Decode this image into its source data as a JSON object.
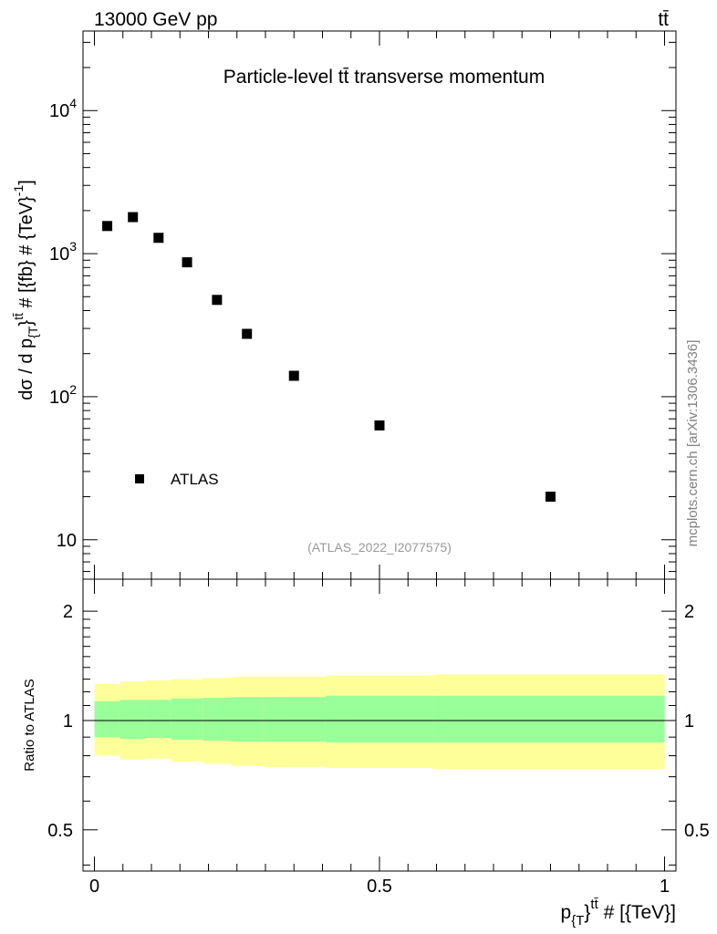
{
  "header": {
    "left": "13000 GeV pp",
    "right": "tt̄"
  },
  "side_label": "mcplots.cern.ch [arXiv:1306.3436]",
  "chart_data": [
    {
      "type": "scatter",
      "title": "Particle-level tt̄ transverse momentum",
      "watermark": "(ATLAS_2022_I2077575)",
      "ylabel": {
        "main": "dσ / d p",
        "sub": "{T",
        "after_sub": "}",
        "sup": "tt̄",
        "tail": " # [{fb} # {TeV}",
        "tail_sup": "-1",
        "end": "]"
      },
      "yscale": "log",
      "xlim": [
        -0.02,
        1.02
      ],
      "ylim": [
        5.3,
        36000
      ],
      "y_ticks": [
        {
          "value": 10,
          "label": "10"
        },
        {
          "value": 100,
          "label": "10",
          "exp": "2"
        },
        {
          "value": 1000,
          "label": "10",
          "exp": "3"
        },
        {
          "value": 10000,
          "label": "10",
          "exp": "4"
        }
      ],
      "legend": {
        "position": "bottom-left",
        "label": "ATLAS"
      },
      "series": [
        {
          "name": "ATLAS",
          "marker": "square",
          "color": "#000000",
          "x": [
            0.0225,
            0.0675,
            0.1125,
            0.1625,
            0.215,
            0.2675,
            0.35,
            0.5,
            0.8
          ],
          "y": [
            1560,
            1800,
            1290,
            870,
            475,
            275,
            140,
            63,
            20
          ]
        }
      ]
    },
    {
      "type": "area",
      "ylabel": "Ratio to ATLAS",
      "xlabel": {
        "main": "p",
        "sub": "{T",
        "after_sub": "}",
        "sup": "tt̄",
        "tail": " # [{TeV}]"
      },
      "yscale": "log",
      "xlim": [
        -0.02,
        1.02
      ],
      "ylim": [
        0.385,
        2.45
      ],
      "y_ticks": [
        {
          "value": 0.5,
          "label": "0.5"
        },
        {
          "value": 1,
          "label": "1"
        },
        {
          "value": 2,
          "label": "2"
        }
      ],
      "x_ticks": [
        {
          "value": 0,
          "label": "0"
        },
        {
          "value": 0.5,
          "label": "0.5"
        },
        {
          "value": 1,
          "label": "1"
        }
      ],
      "reference_line": 1,
      "colors": {
        "outer": "#ffff99",
        "inner": "#99ff99"
      },
      "bands": {
        "edges": [
          0,
          0.045,
          0.09,
          0.135,
          0.19,
          0.24,
          0.295,
          0.405,
          0.595,
          1.0
        ],
        "outer_low": [
          0.8,
          0.78,
          0.785,
          0.77,
          0.76,
          0.75,
          0.745,
          0.74,
          0.735
        ],
        "outer_high": [
          1.26,
          1.28,
          1.29,
          1.3,
          1.31,
          1.32,
          1.32,
          1.33,
          1.34
        ],
        "inner_low": [
          0.9,
          0.89,
          0.895,
          0.885,
          0.88,
          0.875,
          0.875,
          0.87,
          0.87
        ],
        "inner_high": [
          1.13,
          1.14,
          1.14,
          1.15,
          1.155,
          1.16,
          1.16,
          1.17,
          1.17
        ]
      }
    }
  ]
}
